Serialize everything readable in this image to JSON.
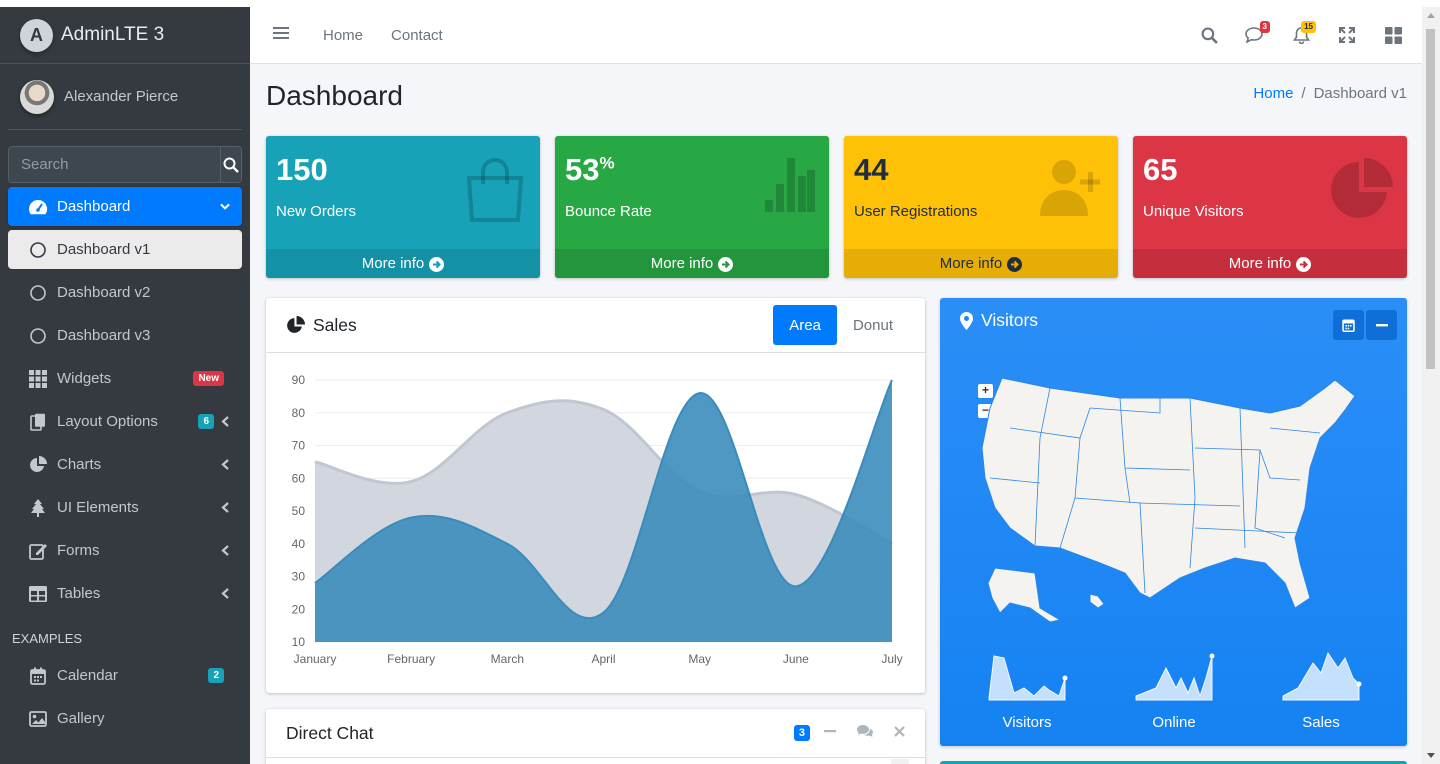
{
  "brand": {
    "name": "AdminLTE 3"
  },
  "user": {
    "name": "Alexander Pierce"
  },
  "sidebar_search": {
    "placeholder": "Search"
  },
  "nav": {
    "dashboard": "Dashboard",
    "dashboard_v1": "Dashboard v1",
    "dashboard_v2": "Dashboard v2",
    "dashboard_v3": "Dashboard v3",
    "widgets": "Widgets",
    "widgets_badge": "New",
    "layout": "Layout Options",
    "layout_badge": "6",
    "charts": "Charts",
    "ui": "UI Elements",
    "forms": "Forms",
    "tables": "Tables",
    "examples_header": "EXAMPLES",
    "calendar": "Calendar",
    "calendar_badge": "2",
    "gallery": "Gallery"
  },
  "topbar": {
    "home": "Home",
    "contact": "Contact",
    "messages_count": "3",
    "notifications_count": "15"
  },
  "page": {
    "title": "Dashboard",
    "breadcrumb_home": "Home",
    "breadcrumb_sep": "/",
    "breadcrumb_current": "Dashboard v1"
  },
  "boxes": [
    {
      "value": "150",
      "label": "New Orders",
      "more": "More info",
      "color": "#17a2b8"
    },
    {
      "value": "53",
      "suffix": "%",
      "label": "Bounce Rate",
      "more": "More info",
      "color": "#28a745"
    },
    {
      "value": "44",
      "label": "User Registrations",
      "more": "More info",
      "color": "#ffc107"
    },
    {
      "value": "65",
      "label": "Unique Visitors",
      "more": "More info",
      "color": "#dc3545"
    }
  ],
  "sales": {
    "title": "Sales",
    "tab_area": "Area",
    "tab_donut": "Donut"
  },
  "chart_data": {
    "type": "area",
    "categories": [
      "January",
      "February",
      "March",
      "April",
      "May",
      "June",
      "July"
    ],
    "series": [
      {
        "color": "#d2d6de",
        "values": [
          65,
          59,
          80,
          81,
          56,
          55,
          40
        ]
      },
      {
        "color": "#3c8dbc",
        "values": [
          28,
          48,
          40,
          19,
          86,
          27,
          90
        ]
      }
    ],
    "yticks": [
      10,
      20,
      30,
      40,
      50,
      60,
      70,
      80,
      90
    ],
    "ylim": [
      10,
      90
    ]
  },
  "chat": {
    "title": "Direct Chat",
    "badge": "3"
  },
  "visitors": {
    "title": "Visitors",
    "zoom_in": "+",
    "zoom_out": "−",
    "stats": [
      "Visitors",
      "Online",
      "Sales"
    ]
  }
}
